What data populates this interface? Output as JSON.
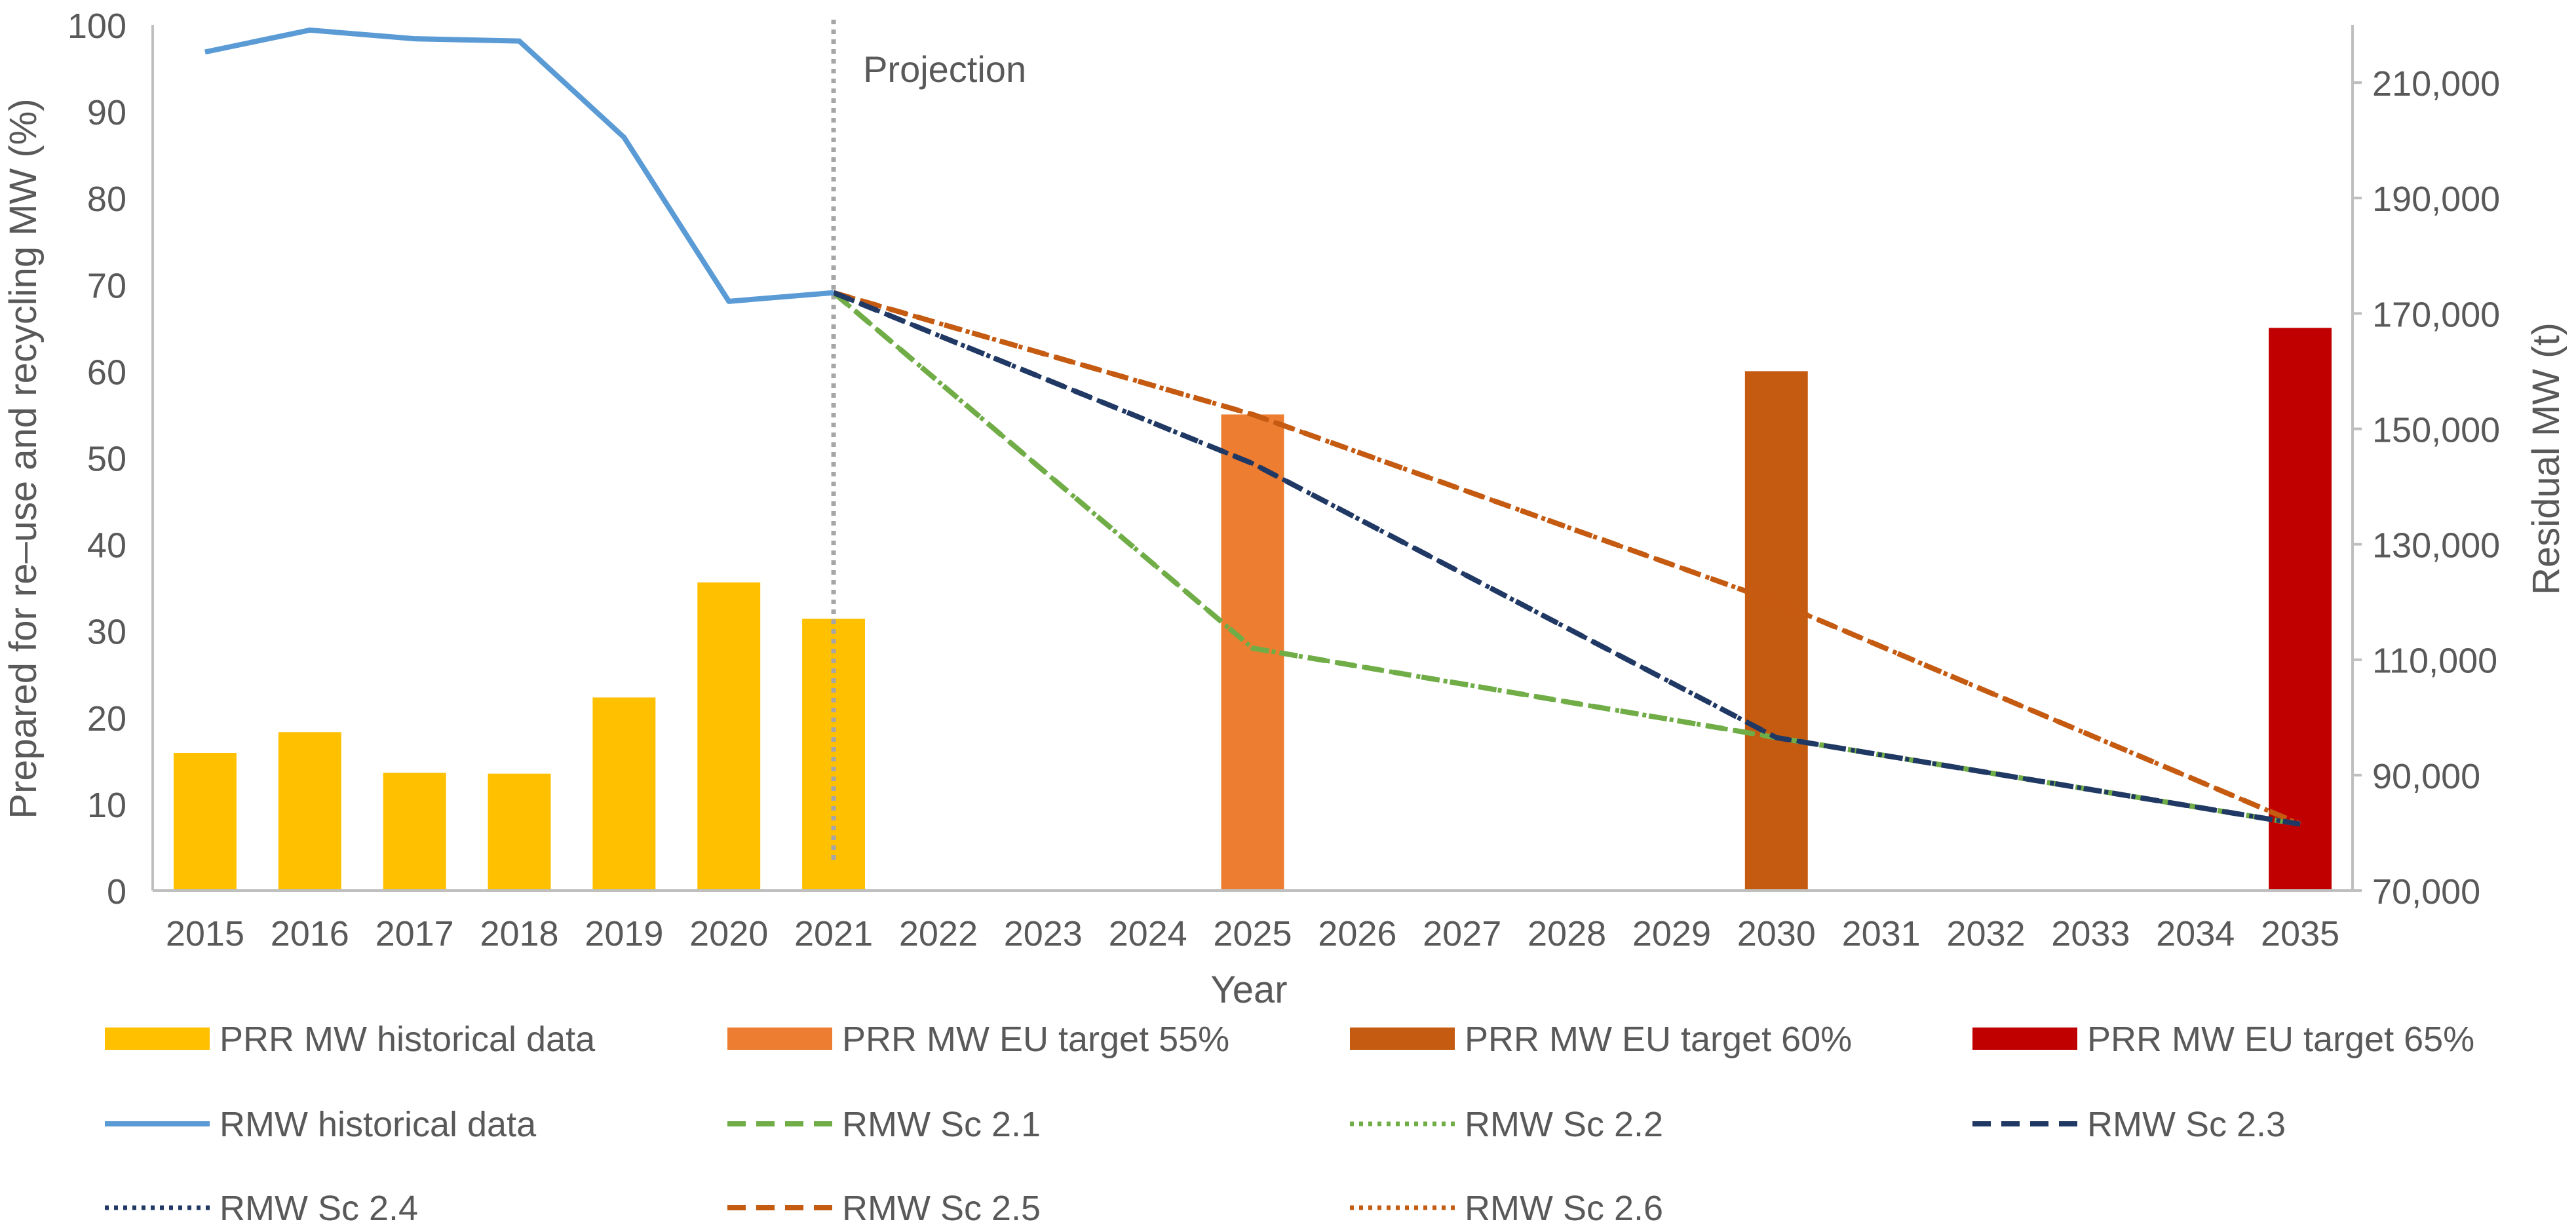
{
  "chart_data": {
    "type": "bar+line",
    "xlabel": "Year",
    "ylabel_left": "Prepared for re–use and recycling MW (%)",
    "ylabel_right": "Residual MW (t)",
    "ylim_left": [
      0,
      100
    ],
    "yticks_left": [
      "0",
      "10",
      "20",
      "30",
      "40",
      "50",
      "60",
      "70",
      "80",
      "90",
      "100"
    ],
    "ylim_right": [
      70000,
      220000
    ],
    "yticks_right": [
      "70,000",
      "90,000",
      "110,000",
      "130,000",
      "150,000",
      "170,000",
      "190,000",
      "210,000"
    ],
    "yticks_right_values": [
      70000,
      90000,
      110000,
      130000,
      150000,
      170000,
      190000,
      210000
    ],
    "categories": [
      "2015",
      "2016",
      "2017",
      "2018",
      "2019",
      "2020",
      "2021",
      "2022",
      "2023",
      "2024",
      "2025",
      "2026",
      "2027",
      "2028",
      "2029",
      "2030",
      "2031",
      "2032",
      "2033",
      "2034",
      "2035"
    ],
    "projection_label": "Projection",
    "projection_at": "2021",
    "bars": [
      {
        "name": "PRR MW historical data",
        "color": "#FFC000",
        "points": [
          [
            "2015",
            15.9
          ],
          [
            "2016",
            18.3
          ],
          [
            "2017",
            13.6
          ],
          [
            "2018",
            13.5
          ],
          [
            "2019",
            22.3
          ],
          [
            "2020",
            35.6
          ],
          [
            "2021",
            31.4
          ]
        ]
      },
      {
        "name": "PRR MW EU target 55%",
        "color": "#ED7D31",
        "points": [
          [
            "2025",
            55
          ]
        ]
      },
      {
        "name": "PRR MW EU target 60%",
        "color": "#C55A11",
        "points": [
          [
            "2030",
            60
          ]
        ]
      },
      {
        "name": "PRR MW EU target 65%",
        "color": "#C00000",
        "points": [
          [
            "2035",
            65
          ]
        ]
      }
    ],
    "lines": [
      {
        "name": "RMW historical data",
        "color": "#5B9BD5",
        "dash": "solid",
        "points": [
          [
            "2015",
            215300
          ],
          [
            "2016",
            219100
          ],
          [
            "2017",
            217600
          ],
          [
            "2018",
            217200
          ],
          [
            "2019",
            200500
          ],
          [
            "2020",
            172100
          ],
          [
            "2021",
            173600
          ]
        ]
      },
      {
        "name": "RMW Sc 2.1",
        "color": "#70AD47",
        "dash": "dashed",
        "points": [
          [
            "2021",
            173600
          ],
          [
            "2025",
            112000
          ],
          [
            "2030",
            96500
          ],
          [
            "2035",
            81500
          ]
        ]
      },
      {
        "name": "RMW Sc 2.2",
        "color": "#70AD47",
        "dash": "dotted",
        "points": [
          [
            "2021",
            173600
          ],
          [
            "2025",
            112000
          ],
          [
            "2030",
            96500
          ],
          [
            "2035",
            81500
          ]
        ]
      },
      {
        "name": "RMW Sc 2.3",
        "color": "#203864",
        "dash": "dashed",
        "points": [
          [
            "2021",
            173600
          ],
          [
            "2025",
            144000
          ],
          [
            "2030",
            96500
          ],
          [
            "2035",
            81500
          ]
        ]
      },
      {
        "name": "RMW Sc 2.4",
        "color": "#203864",
        "dash": "dotted",
        "points": [
          [
            "2021",
            173600
          ],
          [
            "2025",
            144000
          ],
          [
            "2030",
            96500
          ],
          [
            "2035",
            81500
          ]
        ]
      },
      {
        "name": "RMW Sc 2.5",
        "color": "#C55A11",
        "dash": "dashed",
        "points": [
          [
            "2021",
            173600
          ],
          [
            "2025",
            152500
          ],
          [
            "2030",
            120000
          ],
          [
            "2035",
            81500
          ]
        ]
      },
      {
        "name": "RMW Sc 2.6",
        "color": "#C55A11",
        "dash": "dotted",
        "points": [
          [
            "2021",
            173600
          ],
          [
            "2025",
            152500
          ],
          [
            "2030",
            120000
          ],
          [
            "2035",
            81500
          ]
        ]
      }
    ],
    "legend_placement": "bottom",
    "grid": false
  }
}
